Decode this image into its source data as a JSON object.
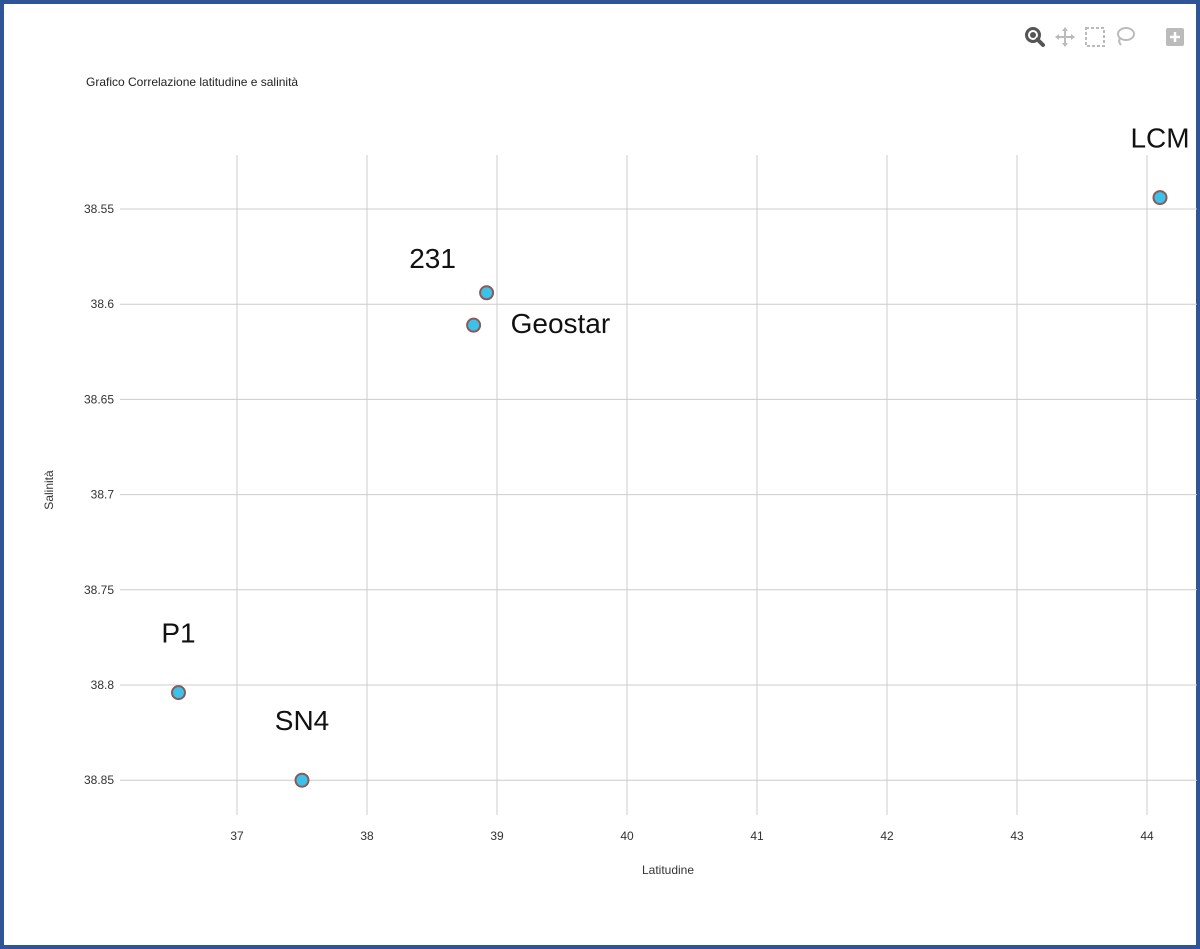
{
  "toolbar": {
    "tools": [
      {
        "name": "zoom",
        "icon": "magnifier-icon",
        "active": true
      },
      {
        "name": "pan",
        "icon": "pan-arrows-icon",
        "active": false
      },
      {
        "name": "box-select",
        "icon": "box-select-icon",
        "active": false
      },
      {
        "name": "lasso-select",
        "icon": "lasso-icon",
        "active": false
      },
      {
        "name": "more",
        "icon": "plus-box-icon",
        "active": false
      }
    ]
  },
  "colors": {
    "frame": "#2f5597",
    "grid": "#cccccc",
    "marker_fill": "#3cc2e8",
    "marker_stroke": "#8a5a5a",
    "tool_active": "#555555",
    "tool_inactive": "#bbbbbb"
  },
  "chart_data": {
    "type": "scatter",
    "title": "Grafico Correlazione latitudine e salinità",
    "xlabel": "Latitudine",
    "ylabel": "Salinità",
    "xlim": [
      36.0,
      44.3
    ],
    "ylim": [
      38.52,
      38.87
    ],
    "y_reversed": true,
    "grid": true,
    "x_ticks": [
      37,
      38,
      39,
      40,
      41,
      42,
      43,
      44
    ],
    "y_ticks": [
      "38.55",
      "38.6",
      "38.65",
      "38.7",
      "38.75",
      "38.8",
      "38.85"
    ],
    "points": [
      {
        "label": "LCM",
        "x": 44.1,
        "y": 38.544,
        "label_pos": "above"
      },
      {
        "label": "231",
        "x": 38.92,
        "y": 38.594,
        "label_pos": "above-left"
      },
      {
        "label": "Geostar",
        "x": 38.82,
        "y": 38.611,
        "label_pos": "right"
      },
      {
        "label": "P1",
        "x": 36.55,
        "y": 38.804,
        "label_pos": "above"
      },
      {
        "label": "SN4",
        "x": 37.5,
        "y": 38.85,
        "label_pos": "above"
      }
    ]
  }
}
